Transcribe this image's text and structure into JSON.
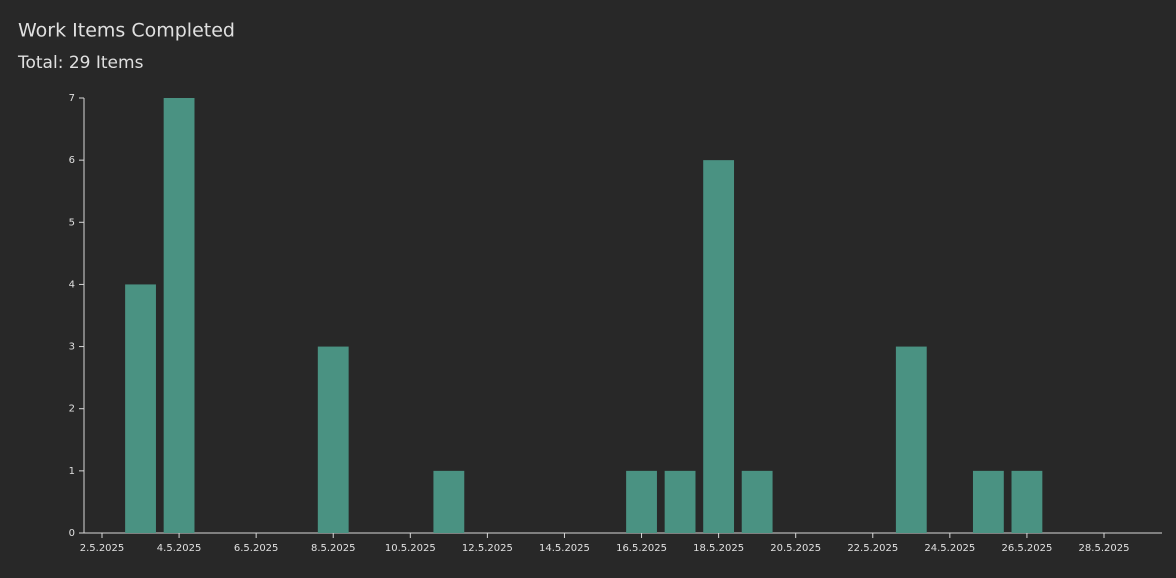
{
  "chart_data": {
    "type": "bar",
    "title": "Work Items Completed",
    "subtitle": "Total: 29 Items",
    "x": [
      "3.5.2025",
      "4.5.2025",
      "8.5.2025",
      "11.5.2025",
      "16.5.2025",
      "17.5.2025",
      "18.5.2025",
      "19.5.2025",
      "23.5.2025",
      "25.5.2025",
      "26.5.2025"
    ],
    "values": [
      4,
      7,
      3,
      1,
      1,
      1,
      6,
      1,
      3,
      1,
      1
    ],
    "color": "#4a9282",
    "xticks": [
      "2.5.2025",
      "4.5.2025",
      "6.5.2025",
      "8.5.2025",
      "10.5.2025",
      "12.5.2025",
      "14.5.2025",
      "16.5.2025",
      "18.5.2025",
      "20.5.2025",
      "22.5.2025",
      "24.5.2025",
      "26.5.2025",
      "28.5.2025"
    ],
    "ylim": [
      0,
      7
    ],
    "yticks": [
      0,
      1,
      2,
      3,
      4,
      5,
      6,
      7
    ]
  }
}
